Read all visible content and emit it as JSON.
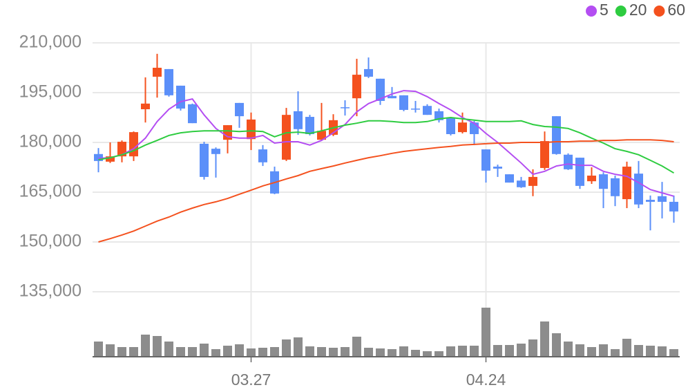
{
  "chart_data": {
    "type": "candlestick",
    "categories": [
      null,
      null,
      null,
      null,
      null,
      null,
      null,
      null,
      null,
      null,
      null,
      null,
      null,
      "03.27",
      null,
      null,
      null,
      null,
      null,
      null,
      null,
      null,
      null,
      null,
      null,
      null,
      null,
      null,
      null,
      null,
      null,
      null,
      null,
      "04.24",
      null,
      null,
      null,
      null,
      null,
      null,
      null,
      null,
      null,
      null,
      null,
      null,
      null,
      null,
      null,
      null
    ],
    "open": [
      176500,
      174200,
      175800,
      175800,
      190000,
      199800,
      202100,
      197100,
      191500,
      179600,
      178100,
      180800,
      191900,
      181000,
      177900,
      171300,
      174800,
      189400,
      187700,
      180800,
      182300,
      190600,
      193300,
      202100,
      199200,
      194000,
      194200,
      190200,
      191000,
      189400,
      187500,
      183100,
      186000,
      177900,
      172700,
      170400,
      168500,
      166900,
      172300,
      187900,
      176300,
      175400,
      168300,
      170400,
      169200,
      162900,
      170600,
      162700,
      163800,
      162100
    ],
    "high": [
      178300,
      180000,
      180600,
      183300,
      199600,
      206700,
      202100,
      197100,
      191700,
      180200,
      178500,
      185200,
      191900,
      189000,
      179200,
      172700,
      190400,
      195400,
      188300,
      191900,
      188500,
      192700,
      205200,
      205600,
      199200,
      196700,
      194200,
      192500,
      191500,
      190200,
      187500,
      189000,
      186500,
      177900,
      173300,
      170400,
      169600,
      171900,
      183300,
      187900,
      176700,
      175400,
      172500,
      171000,
      170000,
      174200,
      174400,
      164000,
      168100,
      164000
    ],
    "low": [
      171000,
      173800,
      174000,
      174400,
      186000,
      193500,
      193800,
      189600,
      185800,
      168800,
      169400,
      176700,
      184400,
      177700,
      172900,
      164400,
      174400,
      182300,
      182100,
      180600,
      181900,
      188100,
      187900,
      199400,
      191300,
      193300,
      189400,
      189000,
      188300,
      186000,
      182100,
      182700,
      179200,
      167900,
      169600,
      167900,
      166300,
      163800,
      171700,
      176300,
      171700,
      166000,
      167500,
      160200,
      160800,
      160200,
      160200,
      153500,
      157100,
      155800
    ],
    "close": [
      174400,
      175800,
      180200,
      183100,
      191700,
      202500,
      194200,
      190200,
      185800,
      169600,
      176500,
      185200,
      187900,
      186900,
      174000,
      164600,
      188300,
      184000,
      182500,
      183500,
      186700,
      190400,
      200400,
      199800,
      192500,
      193300,
      189800,
      190000,
      188300,
      186700,
      182500,
      186000,
      182500,
      171500,
      172100,
      167900,
      166500,
      169600,
      180400,
      176500,
      171900,
      166900,
      170000,
      166000,
      163800,
      172700,
      161300,
      162100,
      162100,
      159200
    ],
    "up_color": "#f4511e",
    "down_color": "#5b8ff9",
    "moving_averages": [
      {
        "name": "5",
        "color": "#b44ef2",
        "values": [
          175200,
          175400,
          176300,
          178100,
          181300,
          186300,
          190000,
          192300,
          193100,
          188300,
          184200,
          181700,
          181300,
          181300,
          182100,
          179800,
          180200,
          180200,
          179200,
          180600,
          182900,
          185400,
          189200,
          191700,
          193100,
          194600,
          195600,
          195400,
          193800,
          191700,
          189800,
          187500,
          185800,
          182700,
          180000,
          176900,
          173800,
          170400,
          171300,
          172900,
          173500,
          173100,
          173100,
          171300,
          170400,
          169800,
          167900,
          165800,
          164800,
          163800
        ]
      },
      {
        "name": "20",
        "color": "#2ecc40",
        "values": [
          174800,
          175400,
          176300,
          177500,
          179200,
          180600,
          182100,
          182900,
          183300,
          183500,
          183500,
          183500,
          183300,
          183500,
          183300,
          181700,
          182900,
          183100,
          182700,
          183500,
          184400,
          185200,
          185800,
          186500,
          186500,
          186300,
          186000,
          186000,
          186300,
          187100,
          187500,
          187100,
          186700,
          186300,
          186300,
          186300,
          186500,
          185400,
          184800,
          184600,
          184200,
          182900,
          181300,
          179800,
          178100,
          177300,
          176300,
          174600,
          172900,
          170800
        ]
      },
      {
        "name": "60",
        "color": "#f4511e",
        "values": [
          150000,
          151000,
          152100,
          153300,
          154800,
          156300,
          157500,
          159000,
          160200,
          161300,
          162100,
          163100,
          164400,
          165600,
          166900,
          167900,
          169000,
          170000,
          171300,
          172100,
          172900,
          173800,
          174600,
          175400,
          176000,
          176700,
          177300,
          177700,
          178100,
          178500,
          178800,
          179200,
          179400,
          179600,
          179800,
          179800,
          180000,
          180000,
          180000,
          180200,
          180200,
          180400,
          180400,
          180600,
          180600,
          180800,
          180800,
          180800,
          180600,
          180200
        ]
      }
    ],
    "volume": {
      "color": "#8c8c8c",
      "ylim": [
        0,
        75
      ],
      "values": [
        22,
        18,
        14,
        14,
        32,
        30,
        22,
        14,
        14,
        19,
        11,
        16,
        18,
        12,
        13,
        14,
        25,
        28,
        15,
        14,
        13,
        14,
        29,
        13,
        12,
        11,
        15,
        10,
        8,
        8,
        15,
        16,
        16,
        71,
        17,
        17,
        19,
        25,
        51,
        34,
        22,
        18,
        14,
        18,
        11,
        26,
        17,
        16,
        15,
        11
      ]
    },
    "ylim": [
      130000,
      215000
    ],
    "yticks": [
      {
        "value": 135000,
        "label": "135,000"
      },
      {
        "value": 150000,
        "label": "150,000"
      },
      {
        "value": 165000,
        "label": "165,000"
      },
      {
        "value": 180000,
        "label": "180,000"
      },
      {
        "value": 195000,
        "label": "195,000"
      },
      {
        "value": 210000,
        "label": "210,000"
      }
    ],
    "grid": true
  }
}
